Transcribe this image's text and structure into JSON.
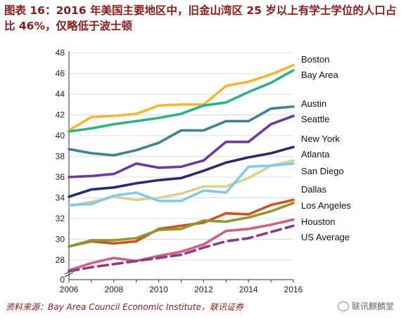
{
  "title": "图表 16：2016 年美国主要地区中，旧金山湾区 25 岁以上有学士学位的人口占比 46%，仅略低于波士顿",
  "source": "资料来源：Bay Area Council Economic Institute，联讯证券",
  "watermark": "联讯麒麟堂",
  "chart_data": {
    "type": "line",
    "x": [
      2006,
      2007,
      2008,
      2009,
      2010,
      2011,
      2012,
      2013,
      2014,
      2015,
      2016
    ],
    "xticks": [
      "2006",
      "2008",
      "2010",
      "2012",
      "2014",
      "2016"
    ],
    "yticks": [
      "0",
      "28",
      "30",
      "32",
      "34",
      "36",
      "38",
      "40",
      "42",
      "44",
      "46",
      "48"
    ],
    "xlim": [
      2006,
      2016
    ],
    "ylim": [
      26.6,
      48
    ],
    "y_axis_break": true,
    "grid": "horizontal",
    "legend": "labels at right end of lines",
    "series": [
      {
        "name": "Boston",
        "color": "#f7b530",
        "dash": false,
        "values": [
          40.5,
          41.8,
          41.9,
          42.1,
          42.9,
          43.0,
          43.0,
          44.8,
          45.2,
          45.9,
          46.8
        ]
      },
      {
        "name": "Bay Area",
        "color": "#2db289",
        "dash": false,
        "values": [
          40.4,
          40.7,
          41.1,
          41.4,
          41.7,
          42.1,
          42.9,
          43.2,
          44.2,
          45.1,
          46.3
        ]
      },
      {
        "name": "Austin",
        "color": "#3f8293",
        "dash": false,
        "values": [
          38.7,
          38.3,
          38.1,
          38.6,
          39.3,
          40.5,
          40.5,
          41.4,
          41.4,
          42.6,
          42.8
        ]
      },
      {
        "name": "Seattle",
        "color": "#6a3b9f",
        "dash": false,
        "values": [
          36.0,
          36.1,
          36.3,
          37.3,
          36.9,
          37.0,
          37.6,
          39.4,
          39.4,
          41.1,
          41.9
        ]
      },
      {
        "name": "New York",
        "color": "#2c2a6e",
        "dash": false,
        "values": [
          34.1,
          34.8,
          35.0,
          35.4,
          35.7,
          35.9,
          36.6,
          37.4,
          37.9,
          38.3,
          38.9
        ]
      },
      {
        "name": "Atlanta",
        "color": "#ddd08f",
        "dash": false,
        "values": [
          33.2,
          33.6,
          34.1,
          33.8,
          34.0,
          34.4,
          35.1,
          35.1,
          35.9,
          37.1,
          37.6
        ]
      },
      {
        "name": "San Diego",
        "color": "#82c9ed",
        "dash": false,
        "values": [
          33.3,
          33.4,
          34.2,
          34.5,
          33.7,
          33.7,
          34.7,
          34.5,
          37.0,
          37.1,
          37.3
        ]
      },
      {
        "name": "Dallas",
        "color": "#d6501f",
        "dash": false,
        "values": [
          29.3,
          29.8,
          29.6,
          29.8,
          31.0,
          31.3,
          31.6,
          32.5,
          32.4,
          33.3,
          33.8
        ]
      },
      {
        "name": "Los Angeles",
        "color": "#8b9a2d",
        "dash": false,
        "values": [
          29.3,
          29.9,
          29.9,
          30.1,
          30.9,
          31.0,
          31.8,
          31.7,
          32.1,
          32.7,
          33.5
        ]
      },
      {
        "name": "Houston",
        "color": "#d0607b",
        "dash": false,
        "values": [
          27.0,
          27.7,
          28.2,
          27.9,
          28.4,
          28.8,
          29.5,
          30.8,
          31.0,
          31.4,
          31.9
        ]
      },
      {
        "name": "US Average",
        "color": "#8a3c84",
        "dash": true,
        "values": [
          26.9,
          27.3,
          27.6,
          27.9,
          28.2,
          28.5,
          29.2,
          29.8,
          30.1,
          30.7,
          31.3
        ]
      }
    ]
  }
}
